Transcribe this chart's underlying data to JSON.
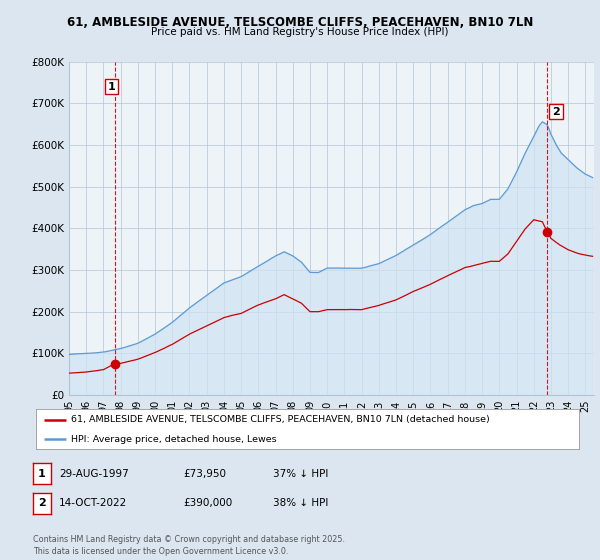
{
  "title_line1": "61, AMBLESIDE AVENUE, TELSCOMBE CLIFFS, PEACEHAVEN, BN10 7LN",
  "title_line2": "Price paid vs. HM Land Registry's House Price Index (HPI)",
  "ylim": [
    0,
    800000
  ],
  "xlim_start": 1995.0,
  "xlim_end": 2025.5,
  "ytick_values": [
    0,
    100000,
    200000,
    300000,
    400000,
    500000,
    600000,
    700000,
    800000
  ],
  "ytick_labels": [
    "£0",
    "£100K",
    "£200K",
    "£300K",
    "£400K",
    "£500K",
    "£600K",
    "£700K",
    "£800K"
  ],
  "hpi_color": "#5b9bd5",
  "hpi_fill_color": "#cfe2f3",
  "price_color": "#cc0000",
  "marker1_date": 1997.66,
  "marker1_value": 73950,
  "marker2_date": 2022.79,
  "marker2_value": 390000,
  "legend_price_label": "61, AMBLESIDE AVENUE, TELSCOMBE CLIFFS, PEACEHAVEN, BN10 7LN (detached house)",
  "legend_hpi_label": "HPI: Average price, detached house, Lewes",
  "table_row1": [
    "1",
    "29-AUG-1997",
    "£73,950",
    "37% ↓ HPI"
  ],
  "table_row2": [
    "2",
    "14-OCT-2022",
    "£390,000",
    "38% ↓ HPI"
  ],
  "footnote": "Contains HM Land Registry data © Crown copyright and database right 2025.\nThis data is licensed under the Open Government Licence v3.0.",
  "background_color": "#dce6f0",
  "plot_bg_color": "#eef3f8",
  "grid_color": "#b0c4d8"
}
